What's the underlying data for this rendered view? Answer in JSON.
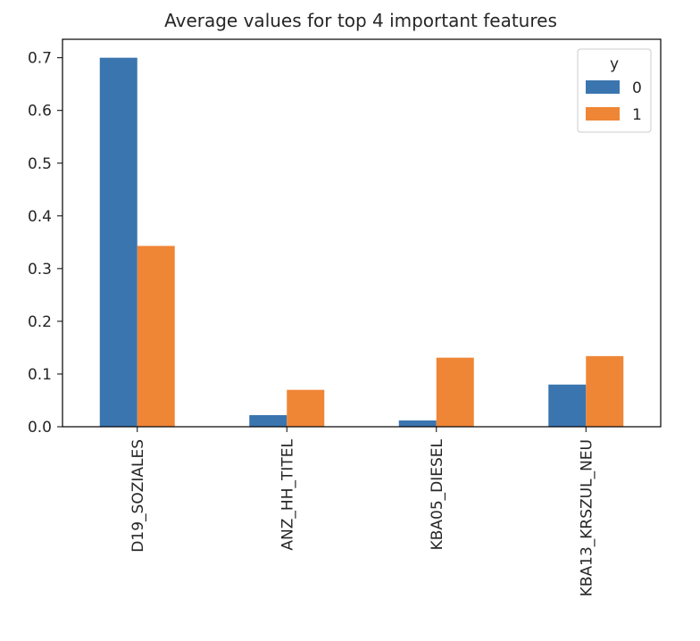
{
  "chart_data": {
    "type": "bar",
    "title": "Average values for top 4 important features",
    "xlabel": "",
    "ylabel": "",
    "categories": [
      "D19_SOZIALES",
      "ANZ_HH_TITEL",
      "KBA05_DIESEL",
      "KBA13_KRSZUL_NEU"
    ],
    "series": [
      {
        "name": "0",
        "color": "#3a75af",
        "values": [
          0.7,
          0.022,
          0.012,
          0.08
        ]
      },
      {
        "name": "1",
        "color": "#ef8636",
        "values": [
          0.343,
          0.07,
          0.131,
          0.134
        ]
      }
    ],
    "ylim": [
      0,
      0.735
    ],
    "yticks": [
      "0.0",
      "0.1",
      "0.2",
      "0.3",
      "0.4",
      "0.5",
      "0.6",
      "0.7"
    ],
    "legend": {
      "title": "y",
      "placement": "top-right"
    },
    "grid": false
  }
}
